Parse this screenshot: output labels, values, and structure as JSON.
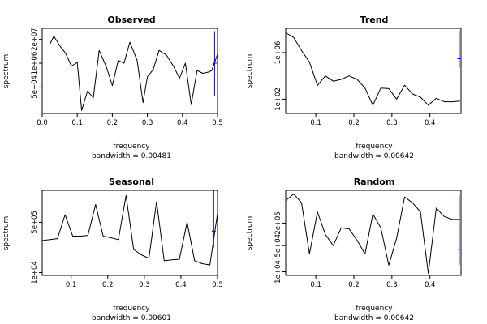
{
  "chart_data": [
    {
      "type": "line",
      "title": "Observed",
      "xlabel": "frequency",
      "ylabel": "spectrum",
      "subtitle": "bandwidth = 0.00481",
      "log_y": true,
      "xlim": [
        0,
        0.5
      ],
      "ylim": [
        1800,
        80000000
      ],
      "x_ticks": [
        "0.0",
        "0.1",
        "0.2",
        "0.3",
        "0.4",
        "0.5"
      ],
      "y_ticks": [
        {
          "value": 50000,
          "label": "5e+04"
        },
        {
          "value": 1000000,
          "label": "1e+06"
        },
        {
          "value": 20000000,
          "label": "2e+07"
        }
      ],
      "series": [
        {
          "x": [
            0.0208,
            0.0333,
            0.05,
            0.0667,
            0.0833,
            0.1,
            0.1125,
            0.1292,
            0.1458,
            0.1625,
            0.1833,
            0.2,
            0.2167,
            0.2333,
            0.25,
            0.2708,
            0.2875,
            0.3,
            0.3167,
            0.3333,
            0.3542,
            0.375,
            0.3917,
            0.4083,
            0.425,
            0.4417,
            0.4583,
            0.475,
            0.4833,
            0.5
          ],
          "y": [
            10000000,
            30000000,
            9000000,
            3500000,
            700000,
            1100000,
            2600,
            30000,
            13000,
            5000000,
            600000,
            60000,
            1400000,
            1000000,
            14000000,
            1400000,
            7000,
            180000,
            450000,
            5000000,
            2800000,
            650000,
            150000,
            1000000,
            5500,
            400000,
            280000,
            330000,
            400000,
            3000000
          ]
        }
      ],
      "ci_marker": {
        "x": 0.4917,
        "low": 16000,
        "mid": 1000000,
        "high": 56000000,
        "color": "#0000ff"
      }
    },
    {
      "type": "line",
      "title": "Trend",
      "xlabel": "frequency",
      "ylabel": "spectrum",
      "subtitle": "bandwidth = 0.00642",
      "log_y": true,
      "xlim": [
        0.0208,
        0.4817
      ],
      "ylim": [
        6,
        120000000
      ],
      "x_ticks": [
        "0.1",
        "0.2",
        "0.3",
        "0.4"
      ],
      "x_tick_values": [
        0.1,
        0.2,
        0.3,
        0.4
      ],
      "y_ticks": [
        {
          "value": 100,
          "label": "1e+02"
        },
        {
          "value": 1000000,
          "label": "1e+06"
        }
      ],
      "series": [
        {
          "x": [
            0.0208,
            0.0417,
            0.0625,
            0.0833,
            0.1042,
            0.125,
            0.1458,
            0.1667,
            0.1875,
            0.2083,
            0.2292,
            0.25,
            0.2708,
            0.2917,
            0.3125,
            0.3333,
            0.3542,
            0.375,
            0.3958,
            0.4167,
            0.4375,
            0.4583,
            0.4792
          ],
          "y": [
            50000000,
            20000000,
            1500000,
            150000,
            1500,
            10000,
            3500,
            5000,
            10000,
            5000,
            900,
            30,
            900,
            800,
            100,
            1600,
            280,
            150,
            30,
            120,
            60,
            60,
            70
          ]
        }
      ],
      "ci_marker": {
        "x": 0.4771,
        "low": 50000,
        "mid": 300000,
        "high": 80000000,
        "color": "#0000ff"
      }
    },
    {
      "type": "line",
      "title": "Seasonal",
      "xlabel": "frequency",
      "ylabel": "spectrum",
      "subtitle": "bandwidth = 0.00601",
      "log_y": true,
      "xlim": [
        0.0208,
        0.5
      ],
      "ylim": [
        8000,
        6000000
      ],
      "x_ticks": [
        "0.1",
        "0.2",
        "0.3",
        "0.4",
        "0.5"
      ],
      "x_tick_values": [
        0.1,
        0.2,
        0.3,
        0.4,
        0.5
      ],
      "y_ticks": [
        {
          "value": 10000,
          "label": "1e+04"
        },
        {
          "value": 500000,
          "label": "5e+05"
        }
      ],
      "series": [
        {
          "x": [
            0.0208,
            0.0417,
            0.0625,
            0.0833,
            0.1042,
            0.125,
            0.1458,
            0.1667,
            0.1875,
            0.2083,
            0.2292,
            0.25,
            0.2708,
            0.2917,
            0.3125,
            0.3333,
            0.3542,
            0.375,
            0.3958,
            0.4167,
            0.4375,
            0.4583,
            0.4792,
            0.5
          ],
          "y": [
            120000,
            130000,
            140000,
            900000,
            170000,
            170000,
            180000,
            2000000,
            170000,
            150000,
            130000,
            4000000,
            60000,
            40000,
            30000,
            2500000,
            25000,
            27000,
            28000,
            500000,
            25000,
            20000,
            18000,
            1000000
          ]
        }
      ],
      "ci_marker": {
        "x": 0.4896,
        "low": 70000,
        "mid": 250000,
        "high": 6000000,
        "color": "#0000ff"
      }
    },
    {
      "type": "line",
      "title": "Random",
      "xlabel": "frequency",
      "ylabel": "spectrum",
      "subtitle": "bandwidth = 0.00642",
      "log_y": true,
      "xlim": [
        0.0208,
        0.4817
      ],
      "ylim": [
        8000,
        1500000
      ],
      "x_ticks": [
        "0.1",
        "0.2",
        "0.3",
        "0.4"
      ],
      "x_tick_values": [
        0.1,
        0.2,
        0.3,
        0.4
      ],
      "y_ticks": [
        {
          "value": 10000,
          "label": "1e+04"
        },
        {
          "value": 50000,
          "label": "5e+04"
        },
        {
          "value": 200000,
          "label": "2e+05"
        }
      ],
      "series": [
        {
          "x": [
            0.0208,
            0.0417,
            0.0625,
            0.0833,
            0.1042,
            0.125,
            0.1458,
            0.1667,
            0.1875,
            0.2083,
            0.2292,
            0.25,
            0.2708,
            0.2917,
            0.3125,
            0.3333,
            0.3542,
            0.375,
            0.3958,
            0.4167,
            0.4375,
            0.4583,
            0.4792
          ],
          "y": [
            800000,
            1200000,
            700000,
            30000,
            400000,
            100000,
            50000,
            150000,
            140000,
            70000,
            30000,
            350000,
            150000,
            15000,
            80000,
            1000000,
            700000,
            400000,
            9000,
            500000,
            300000,
            250000,
            250000
          ]
        }
      ],
      "ci_marker": {
        "x": 0.4771,
        "low": 15000,
        "mid": 40000,
        "high": 1100000,
        "color": "#0000ff"
      }
    }
  ]
}
